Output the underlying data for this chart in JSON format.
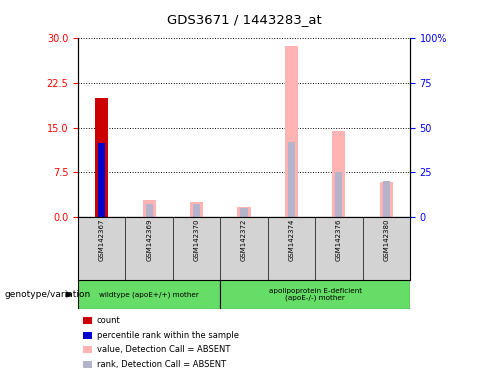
{
  "title": "GDS3671 / 1443283_at",
  "samples": [
    "GSM142367",
    "GSM142369",
    "GSM142370",
    "GSM142372",
    "GSM142374",
    "GSM142376",
    "GSM142380"
  ],
  "count_values": [
    20.0,
    0,
    0,
    0,
    0,
    0,
    0
  ],
  "percentile_rank_values": [
    12.5,
    0,
    0,
    0,
    0,
    0,
    0
  ],
  "absent_value_values": [
    0,
    2.8,
    2.5,
    1.7,
    28.7,
    14.5,
    5.8
  ],
  "absent_rank_values": [
    0,
    7.5,
    7.0,
    5.0,
    42.0,
    25.0,
    20.0
  ],
  "ylim_left": [
    0,
    30
  ],
  "ylim_right": [
    0,
    100
  ],
  "yticks_left": [
    0,
    7.5,
    15,
    22.5,
    30
  ],
  "yticks_right": [
    0,
    25,
    50,
    75,
    100
  ],
  "group1_label": "wildtype (apoE+/+) mother",
  "group2_label": "apolipoprotein E-deficient\n(apoE-/-) mother",
  "group1_indices": [
    0,
    1,
    2
  ],
  "group2_indices": [
    3,
    4,
    5,
    6
  ],
  "genotype_label": "genotype/variation",
  "count_color": "#cc0000",
  "rank_color": "#0000cc",
  "absent_value_color": "#ffb3b3",
  "absent_rank_color": "#b3b3cc",
  "plot_bg": "#ffffff",
  "sample_bg": "#d3d3d3",
  "group_bg": "#66dd66",
  "legend_labels": [
    "count",
    "percentile rank within the sample",
    "value, Detection Call = ABSENT",
    "rank, Detection Call = ABSENT"
  ]
}
